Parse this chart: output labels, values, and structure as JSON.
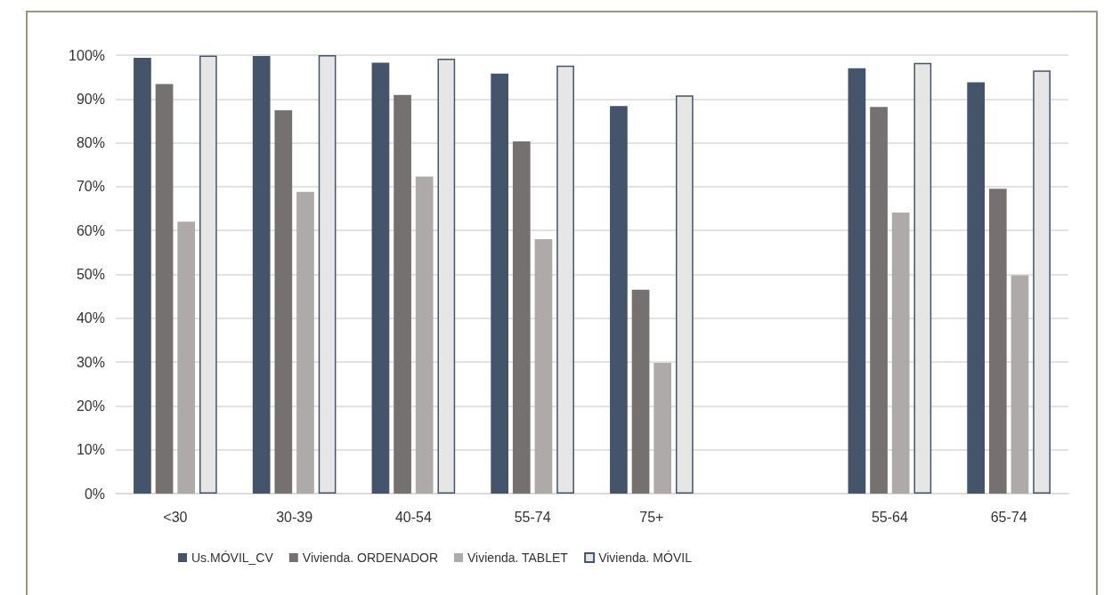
{
  "chart_data": {
    "type": "bar",
    "categories": [
      "<30",
      "30-39",
      "40-54",
      "55-74",
      "75+",
      null,
      "55-64",
      "65-74"
    ],
    "series": [
      {
        "name": "Us.MÓVIL_CV",
        "color": "#44546a",
        "values": [
          99.4,
          99.8,
          98.3,
          95.8,
          88.4,
          null,
          97.0,
          93.8
        ]
      },
      {
        "name": "Vivienda. ORDENADOR",
        "color": "#767171",
        "values": [
          93.4,
          87.4,
          90.9,
          80.3,
          46.5,
          null,
          88.2,
          69.5
        ]
      },
      {
        "name": "Vivienda. TABLET",
        "color": "#aeaaaa",
        "values": [
          62.0,
          68.8,
          72.3,
          58.0,
          29.8,
          null,
          64.1,
          49.8
        ]
      },
      {
        "name": "Vivienda. MÓVIL",
        "color": "#e7e6e6",
        "values": [
          99.9,
          100,
          99.2,
          97.6,
          90.8,
          null,
          98.2,
          96.5
        ]
      }
    ],
    "ylim": [
      0,
      100
    ],
    "yticks": [
      {
        "value": 0,
        "label": "0%"
      },
      {
        "value": 10,
        "label": "10%"
      },
      {
        "value": 20,
        "label": "20%"
      },
      {
        "value": 30,
        "label": "30%"
      },
      {
        "value": 40,
        "label": "40%"
      },
      {
        "value": 50,
        "label": "50%"
      },
      {
        "value": 60,
        "label": "60%"
      },
      {
        "value": 70,
        "label": "70%"
      },
      {
        "value": 80,
        "label": "80%"
      },
      {
        "value": 90,
        "label": "90%"
      },
      {
        "value": 100,
        "label": "100%"
      }
    ],
    "grid": "y",
    "legend": "bottom"
  }
}
